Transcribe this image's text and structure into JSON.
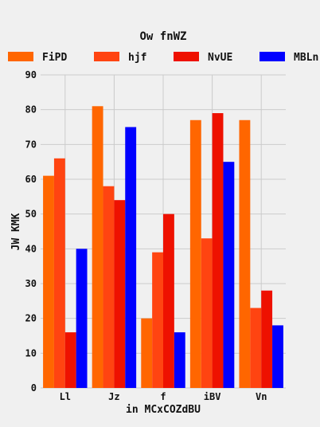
{
  "chart_data": {
    "type": "bar",
    "title": "Ow fnWZ",
    "xlabel": "in MCxCOZdBU",
    "ylabel": "JW KMK",
    "categories": [
      "Ll",
      "Jz",
      "f",
      "iBV",
      "Vn"
    ],
    "series": [
      {
        "name": "FiPD",
        "color": "#ff6600",
        "values": [
          61,
          81,
          20,
          77,
          77
        ]
      },
      {
        "name": "hjf",
        "color": "#ff4411",
        "values": [
          66,
          58,
          39,
          43,
          23
        ]
      },
      {
        "name": "NvUE",
        "color": "#ee1100",
        "values": [
          16,
          54,
          50,
          79,
          28
        ]
      },
      {
        "name": "MBLn",
        "color": "#0000ff",
        "values": [
          40,
          75,
          16,
          65,
          18
        ]
      }
    ],
    "ylim": [
      0,
      90
    ],
    "yticks": [
      0,
      10,
      20,
      30,
      40,
      50,
      60,
      70,
      80,
      90
    ],
    "grid": true,
    "legend_position": "top"
  }
}
